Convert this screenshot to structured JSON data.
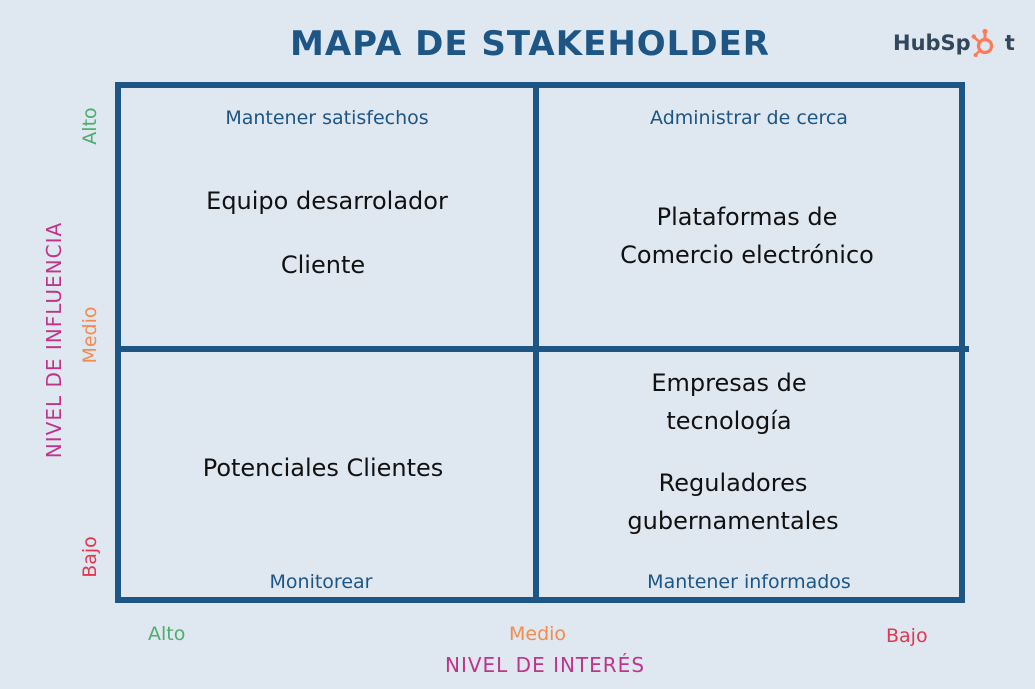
{
  "title": "MAPA DE STAKEHOLDER",
  "logo": {
    "text_left": "HubSp",
    "text_right": "t"
  },
  "colors": {
    "primary": "#1d5584",
    "background": "#dfe7f0",
    "high": "#4cae6e",
    "medium": "#f28c4f",
    "low": "#e0394f",
    "axis_title": "#c0348a",
    "logo_orange": "#ff7a59"
  },
  "quadrants": {
    "top_left": {
      "label": "Mantener satisfechos",
      "items": [
        "Equipo desarrolador",
        "Cliente"
      ]
    },
    "top_right": {
      "label": "Administrar de cerca",
      "items": [
        "Plataformas de Comercio electrónico"
      ],
      "item_lines": [
        "Plataformas de",
        "Comercio electrónico"
      ]
    },
    "bottom_left": {
      "label": "Monitorear",
      "items": [
        "Potenciales Clientes"
      ]
    },
    "bottom_right": {
      "label": "Mantener informados",
      "items": [
        "Empresas de tecnología",
        "Reguladores gubernamentales"
      ],
      "item1_lines": [
        "Empresas de",
        "tecnología"
      ],
      "item2_lines": [
        "Reguladores",
        "gubernamentales"
      ]
    }
  },
  "y_axis": {
    "title": "NIVEL DE INFLUENCIA",
    "ticks": {
      "high": "Alto",
      "medium": "Medio",
      "low": "Bajo"
    }
  },
  "x_axis": {
    "title": "NIVEL DE INTERÉS",
    "ticks": {
      "high": "Alto",
      "medium": "Medio",
      "low": "Bajo"
    }
  }
}
